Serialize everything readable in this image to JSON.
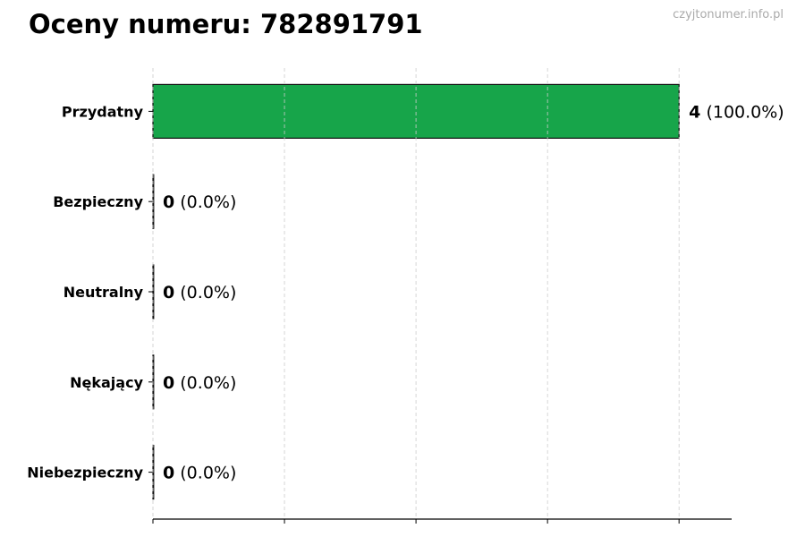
{
  "chart_data": {
    "type": "bar",
    "orientation": "horizontal",
    "title": "Oceny numeru: 782891791",
    "watermark": "czyjtonumer.info.pl",
    "categories": [
      "Przydatny",
      "Bezpieczny",
      "Neutralny",
      "Nękający",
      "Niebezpieczny"
    ],
    "values": [
      4,
      0,
      0,
      0,
      0
    ],
    "percent_labels": [
      "(100.0%)",
      "(0.0%)",
      "(0.0%)",
      "(0.0%)",
      "(0.0%)"
    ],
    "xlim": [
      0,
      4.4
    ],
    "xticks": [
      0,
      1,
      2,
      3,
      4
    ],
    "xtick_labels_shown": false,
    "grid": "x, dashed",
    "bar_color": "#17a54a",
    "xlabel": "",
    "ylabel": ""
  }
}
